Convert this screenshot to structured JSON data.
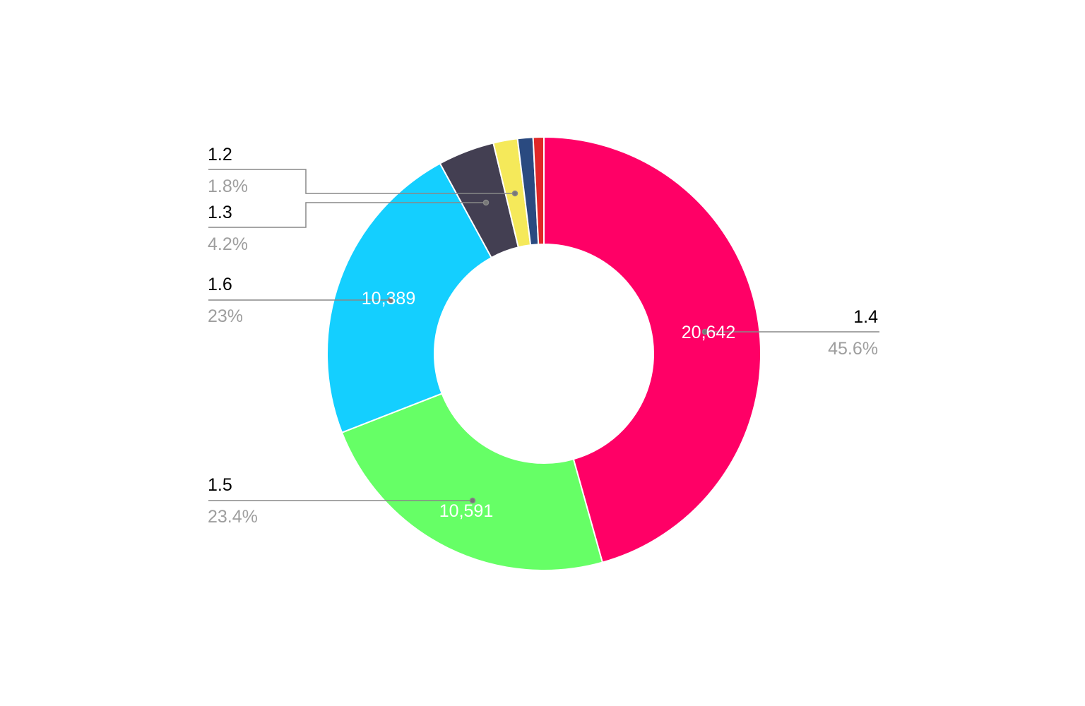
{
  "chart_data": {
    "type": "pie",
    "donut": true,
    "slices": [
      {
        "label": "1.4",
        "value": 20642,
        "value_label": "20,642",
        "percent_label": "45.6%",
        "color": "#ff0066"
      },
      {
        "label": "1.5",
        "value": 10591,
        "value_label": "10,591",
        "percent_label": "23.4%",
        "color": "#66ff66"
      },
      {
        "label": "1.6",
        "value": 10389,
        "value_label": "10,389",
        "percent_label": "23%",
        "color": "#14cfff"
      },
      {
        "label": "1.3",
        "value": 1901,
        "percent_label": "4.2%",
        "color": "#433f52"
      },
      {
        "label": "1.2",
        "value": 815,
        "percent_label": "1.8%",
        "color": "#f5e95a"
      },
      {
        "value": 520,
        "color": "#2a4a80"
      },
      {
        "value": 360,
        "color": "#e02828"
      }
    ],
    "legend": "none"
  }
}
